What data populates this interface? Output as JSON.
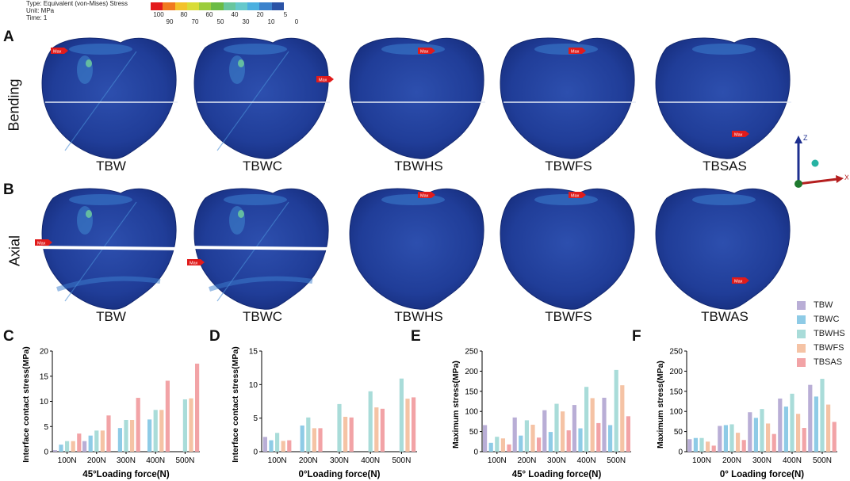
{
  "header": {
    "type_line": "Type: Equivalent (von-Mises) Stress",
    "unit_line": "Unit: MPa",
    "time_line": "Time: 1"
  },
  "color_scale": {
    "colors": [
      "#e31a1c",
      "#f17a1f",
      "#f3c22a",
      "#d9dc36",
      "#9ccd3c",
      "#6bbb44",
      "#69c69e",
      "#66c9cc",
      "#4bb0e0",
      "#3b82cc",
      "#2b53a6"
    ],
    "top_labels": [
      "100",
      "80",
      "60",
      "40",
      "20",
      "5"
    ],
    "bottom_labels": [
      "90",
      "70",
      "50",
      "30",
      "10",
      "0"
    ]
  },
  "panels": {
    "A": "A",
    "B": "B",
    "C": "C",
    "D": "D",
    "E": "E",
    "F": "F"
  },
  "rows": {
    "bending": "Bending",
    "axial": "Axial"
  },
  "models_row_a": [
    "TBW",
    "TBWC",
    "TBWHS",
    "TBWFS",
    "TBSAS"
  ],
  "models_row_b": [
    "TBW",
    "TBWC",
    "TBWHS",
    "TBWFS",
    "TBWAS"
  ],
  "max_tag": "Max",
  "axes_triad": {
    "z": "Z",
    "x": "X"
  },
  "series_legend": {
    "names": [
      "TBW",
      "TBWC",
      "TBWHS",
      "TBWFS",
      "TBSAS"
    ],
    "colors": [
      "#b9aed6",
      "#8ecbe6",
      "#a9dcd9",
      "#f5c3a5",
      "#f2a3a6"
    ]
  },
  "chart_data": [
    {
      "type": "bar",
      "panel": "C",
      "categories": [
        "100N",
        "200N",
        "300N",
        "400N",
        "500N"
      ],
      "series": [
        {
          "name": "TBW",
          "values": [
            0.3,
            2.1,
            null,
            null,
            null
          ]
        },
        {
          "name": "TBWC",
          "values": [
            1.4,
            3.2,
            4.7,
            6.4,
            null
          ]
        },
        {
          "name": "TBWHS",
          "values": [
            2.1,
            4.2,
            6.3,
            8.3,
            10.4
          ]
        },
        {
          "name": "TBWFS",
          "values": [
            2.1,
            4.2,
            6.3,
            8.3,
            10.6
          ]
        },
        {
          "name": "TBSAS",
          "values": [
            3.6,
            7.2,
            10.7,
            14.1,
            17.5
          ]
        }
      ],
      "ylabel": "Interface contact stress(MPa)",
      "xlabel": "45°Loading force(N)",
      "ylim": [
        0,
        20
      ],
      "yticks": [
        0,
        5,
        10,
        15,
        20
      ]
    },
    {
      "type": "bar",
      "panel": "D",
      "categories": [
        "100N",
        "200N",
        "300N",
        "400N",
        "500N"
      ],
      "series": [
        {
          "name": "TBW",
          "values": [
            2.2,
            null,
            null,
            null,
            null
          ]
        },
        {
          "name": "TBWC",
          "values": [
            1.7,
            3.9,
            null,
            null,
            null
          ]
        },
        {
          "name": "TBWHS",
          "values": [
            2.8,
            5.1,
            7.1,
            9.0,
            10.9
          ]
        },
        {
          "name": "TBWFS",
          "values": [
            1.6,
            3.5,
            5.2,
            6.6,
            7.9
          ]
        },
        {
          "name": "TBSAS",
          "values": [
            1.7,
            3.5,
            5.1,
            6.4,
            8.1
          ]
        }
      ],
      "ylabel": "Interface contact stress(MPa)",
      "xlabel": "0°Loading force(N)",
      "ylim": [
        0,
        15
      ],
      "yticks": [
        0,
        5,
        10,
        15
      ]
    },
    {
      "type": "bar",
      "panel": "E",
      "categories": [
        "100N",
        "200N",
        "300N",
        "400N",
        "500N"
      ],
      "series": [
        {
          "name": "TBW",
          "values": [
            66,
            85,
            103,
            116,
            134
          ]
        },
        {
          "name": "TBWC",
          "values": [
            22,
            40,
            49,
            58,
            66
          ]
        },
        {
          "name": "TBWHS",
          "values": [
            37,
            78,
            119,
            161,
            203
          ]
        },
        {
          "name": "TBWFS",
          "values": [
            33,
            67,
            100,
            133,
            165
          ]
        },
        {
          "name": "TBSAS",
          "values": [
            18,
            35,
            53,
            71,
            88
          ]
        }
      ],
      "ylabel": "Maximum stress(MPa)",
      "xlabel": "45° Loading force(N)",
      "ylim": [
        0,
        250
      ],
      "yticks": [
        0,
        50,
        100,
        150,
        200,
        250
      ]
    },
    {
      "type": "bar",
      "panel": "F",
      "categories": [
        "100N",
        "200N",
        "300N",
        "400N",
        "500N"
      ],
      "series": [
        {
          "name": "TBW",
          "values": [
            31,
            64,
            98,
            132,
            166
          ]
        },
        {
          "name": "TBWC",
          "values": [
            34,
            66,
            84,
            112,
            137
          ]
        },
        {
          "name": "TBWHS",
          "values": [
            34,
            68,
            106,
            144,
            181
          ]
        },
        {
          "name": "TBWFS",
          "values": [
            25,
            47,
            70,
            94,
            117
          ]
        },
        {
          "name": "TBSAS",
          "values": [
            15,
            29,
            44,
            59,
            74
          ]
        }
      ],
      "ylabel": "Maximum stress(MPa)",
      "xlabel": "0° Loading force(N)",
      "ylim": [
        0,
        250
      ],
      "yticks": [
        0,
        50,
        100,
        150,
        200,
        250
      ]
    }
  ]
}
